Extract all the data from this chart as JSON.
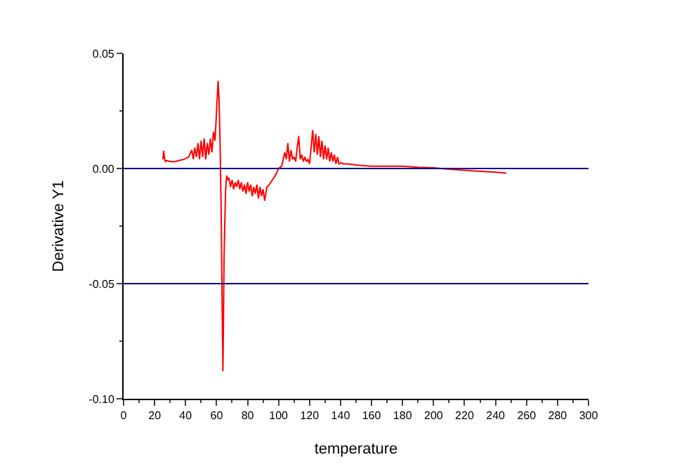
{
  "chart_data": {
    "type": "line",
    "xlabel": "temperature",
    "ylabel": "Derivative Y1",
    "x": [
      25.4,
      25.8,
      26.5,
      27,
      28,
      30,
      33,
      36,
      39,
      42,
      44,
      45,
      46,
      47,
      48,
      49,
      50,
      51,
      52,
      53,
      54,
      55,
      56,
      57,
      58,
      59,
      60,
      61,
      61.6,
      62.3,
      63,
      63.6,
      64.1,
      64.4,
      64.8,
      65.3,
      65.8,
      66.5,
      67,
      68,
      69,
      70,
      71,
      72,
      73,
      74,
      75,
      76,
      77,
      78,
      79,
      80,
      81,
      82,
      83,
      84,
      85,
      86,
      87,
      88,
      89,
      90,
      91,
      92,
      92.5,
      94,
      96,
      98,
      100,
      102,
      104,
      105,
      106,
      107,
      108,
      109,
      110,
      111,
      112,
      113,
      114,
      115,
      116,
      117,
      118,
      119,
      120,
      121,
      122,
      123,
      124,
      125,
      126,
      127,
      128,
      129,
      130,
      131,
      132,
      133,
      134,
      135,
      136,
      137,
      138,
      139,
      140,
      142,
      145,
      150,
      160,
      170,
      180,
      190,
      200,
      210,
      220,
      230,
      240,
      247
    ],
    "series": [
      {
        "color": "#ff0000",
        "values": [
          0.004,
          0.0077,
          0.004,
          0.003,
          0.0035,
          0.003,
          0.003,
          0.0035,
          0.004,
          0.005,
          0.008,
          0.004,
          0.009,
          0.005,
          0.011,
          0.004,
          0.012,
          0.005,
          0.013,
          0.004,
          0.011,
          0.006,
          0.013,
          0.007,
          0.016,
          0.012,
          0.025,
          0.038,
          0.03,
          0.01,
          -0.02,
          -0.06,
          -0.088,
          -0.07,
          -0.04,
          -0.024,
          -0.01,
          -0.003,
          -0.005,
          -0.004,
          -0.008,
          -0.005,
          -0.009,
          -0.006,
          -0.008,
          -0.005,
          -0.009,
          -0.006,
          -0.01,
          -0.007,
          -0.011,
          -0.006,
          -0.01,
          -0.007,
          -0.012,
          -0.008,
          -0.011,
          -0.007,
          -0.013,
          -0.008,
          -0.012,
          -0.009,
          -0.014,
          -0.01,
          -0.008,
          -0.007,
          -0.005,
          -0.003,
          0.0,
          0.001,
          0.007,
          0.004,
          0.011,
          0.003,
          0.008,
          0.004,
          0.005,
          0.003,
          0.009,
          0.014,
          0.004,
          0.006,
          0.003,
          0.005,
          0.003,
          0.004,
          0.002,
          0.009,
          0.0167,
          0.007,
          0.015,
          0.006,
          0.014,
          0.005,
          0.012,
          0.004,
          0.01,
          0.004,
          0.009,
          0.003,
          0.007,
          0.003,
          0.006,
          0.002,
          0.005,
          0.002,
          0.0025,
          0.002,
          0.002,
          0.0015,
          0.001,
          0.001,
          0.001,
          0.0005,
          0.0003,
          -0.0003,
          -0.0008,
          -0.0012,
          -0.0016,
          -0.002
        ]
      }
    ],
    "xlim": [
      0,
      300
    ],
    "xticks": [
      0,
      20,
      40,
      60,
      80,
      100,
      120,
      140,
      160,
      180,
      200,
      220,
      240,
      260,
      280,
      300
    ],
    "ylim": [
      -0.1,
      0.05
    ],
    "yticks": [
      {
        "value": -0.1,
        "label": "-0.10"
      },
      {
        "value": -0.05,
        "label": "-0.05"
      },
      {
        "value": 0,
        "label": "0.00"
      },
      {
        "value": 0.05,
        "label": "0.05"
      }
    ],
    "ref_lines": [
      {
        "axis": "y",
        "value": 0,
        "color": "#00008b"
      },
      {
        "axis": "y",
        "value": -0.05,
        "color": "#00008b"
      }
    ],
    "marker": "none",
    "line_style": "solid"
  }
}
